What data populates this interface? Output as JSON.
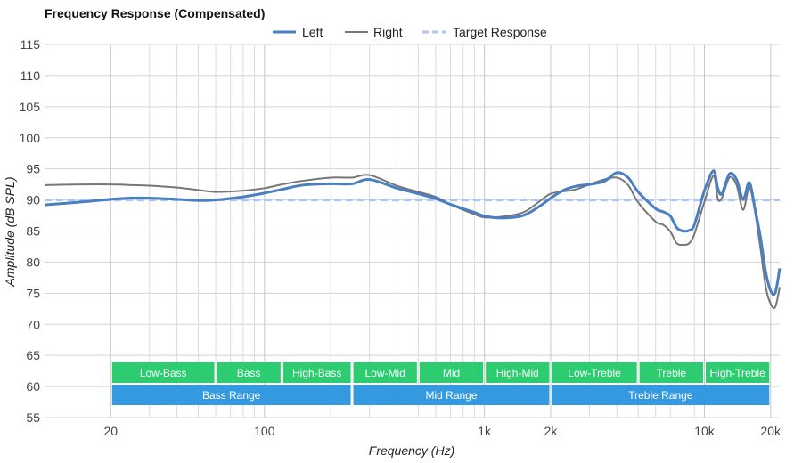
{
  "chart_data": {
    "type": "line",
    "title": "Frequency Response (Compensated)",
    "xlabel": "Frequency (Hz)",
    "ylabel": "Amplitude (dB SPL)",
    "x_scale": "log",
    "xlim": [
      10,
      22000
    ],
    "ylim": [
      55,
      115
    ],
    "y_ticks": [
      55,
      60,
      65,
      70,
      75,
      80,
      85,
      90,
      95,
      100,
      105,
      110,
      115
    ],
    "y_tick_labels": [
      "55",
      "60",
      "65",
      "70",
      "75",
      "80",
      "85",
      "90",
      "95",
      "100",
      "105",
      "110",
      "115"
    ],
    "x_major_ticks": [
      20,
      100,
      1000,
      2000,
      10000,
      20000
    ],
    "x_major_labels": [
      "20",
      "100",
      "1k",
      "2k",
      "10k",
      "20k"
    ],
    "x_minor_ticks": [
      30,
      40,
      50,
      60,
      70,
      80,
      90,
      200,
      300,
      400,
      500,
      600,
      700,
      800,
      900,
      3000,
      4000,
      5000,
      6000,
      7000,
      8000,
      9000
    ],
    "grid": true,
    "legend_position": "top-center",
    "series": [
      {
        "name": "Left",
        "color": "#4a7fc1",
        "x": [
          10,
          15,
          20,
          25,
          30,
          40,
          50,
          60,
          80,
          100,
          120,
          150,
          200,
          250,
          300,
          400,
          500,
          600,
          700,
          800,
          900,
          1000,
          1200,
          1500,
          1800,
          2000,
          2300,
          2600,
          3000,
          3500,
          4000,
          4500,
          5000,
          6000,
          6500,
          7000,
          7500,
          8000,
          8500,
          9000,
          10000,
          11000,
          11500,
          12000,
          13000,
          14000,
          15000,
          16000,
          17000,
          18000,
          19000,
          20000,
          21000,
          22000
        ],
        "y": [
          89.2,
          89.7,
          90.1,
          90.3,
          90.3,
          90.1,
          89.9,
          90.0,
          90.5,
          91.1,
          91.7,
          92.4,
          92.6,
          92.6,
          93.3,
          91.9,
          91.0,
          90.2,
          89.3,
          88.6,
          88.0,
          87.4,
          87.1,
          87.5,
          89.1,
          90.3,
          91.6,
          92.2,
          92.5,
          93.0,
          94.4,
          93.6,
          91.3,
          88.6,
          88.1,
          87.4,
          85.5,
          85.0,
          85.1,
          86.0,
          91.5,
          94.7,
          91.9,
          91.0,
          94.2,
          93.3,
          90.1,
          92.8,
          88.5,
          83.9,
          78.4,
          75.4,
          75.1,
          79.0
        ]
      },
      {
        "name": "Right",
        "color": "#777777",
        "x": [
          10,
          15,
          20,
          25,
          30,
          40,
          50,
          60,
          80,
          100,
          120,
          150,
          200,
          250,
          300,
          400,
          500,
          600,
          700,
          800,
          900,
          1000,
          1200,
          1500,
          1800,
          2000,
          2300,
          2600,
          3000,
          3500,
          4000,
          4500,
          5000,
          6000,
          6500,
          7000,
          7500,
          8000,
          8500,
          9000,
          10000,
          11000,
          11500,
          12000,
          13000,
          14000,
          15000,
          16000,
          17000,
          18000,
          19000,
          20000,
          21000,
          22000
        ],
        "y": [
          92.4,
          92.5,
          92.5,
          92.4,
          92.3,
          92.0,
          91.6,
          91.3,
          91.5,
          91.9,
          92.5,
          93.1,
          93.6,
          93.6,
          94.0,
          92.3,
          91.3,
          90.5,
          89.3,
          88.4,
          87.7,
          87.2,
          87.3,
          88.0,
          89.9,
          91.0,
          91.4,
          91.7,
          92.5,
          93.3,
          93.6,
          92.4,
          89.6,
          86.5,
          86.0,
          84.9,
          83.0,
          82.8,
          83.0,
          84.5,
          89.7,
          93.9,
          90.2,
          90.3,
          93.6,
          92.4,
          88.4,
          92.0,
          88.0,
          82.1,
          76.0,
          73.3,
          72.8,
          76.0
        ]
      },
      {
        "name": "Target Response",
        "color": "#aec4f5",
        "dashed": true,
        "x": [
          10,
          22000
        ],
        "y": [
          90,
          90
        ]
      }
    ],
    "bands": [
      {
        "label": "Low-Bass",
        "from": 20,
        "to": 60,
        "color": "#2ecc71",
        "row": 1
      },
      {
        "label": "Bass",
        "from": 60,
        "to": 120,
        "color": "#2ecc71",
        "row": 1
      },
      {
        "label": "High-Bass",
        "from": 120,
        "to": 250,
        "color": "#2ecc71",
        "row": 1
      },
      {
        "label": "Low-Mid",
        "from": 250,
        "to": 500,
        "color": "#2ecc71",
        "row": 1
      },
      {
        "label": "Mid",
        "from": 500,
        "to": 1000,
        "color": "#2ecc71",
        "row": 1
      },
      {
        "label": "High-Mid",
        "from": 1000,
        "to": 2000,
        "color": "#2ecc71",
        "row": 1
      },
      {
        "label": "Low-Treble",
        "from": 2000,
        "to": 5000,
        "color": "#2ecc71",
        "row": 1
      },
      {
        "label": "Treble",
        "from": 5000,
        "to": 10000,
        "color": "#2ecc71",
        "row": 1
      },
      {
        "label": "High-Treble",
        "from": 10000,
        "to": 20000,
        "color": "#2ecc71",
        "row": 1
      },
      {
        "label": "Bass Range",
        "from": 20,
        "to": 250,
        "color": "#3399e0",
        "row": 2
      },
      {
        "label": "Mid Range",
        "from": 250,
        "to": 2000,
        "color": "#3399e0",
        "row": 2
      },
      {
        "label": "Treble Range",
        "from": 2000,
        "to": 20000,
        "color": "#3399e0",
        "row": 2
      }
    ]
  }
}
